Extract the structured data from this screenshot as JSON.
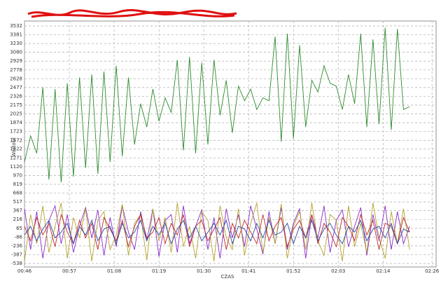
{
  "chart_data": {
    "type": "line",
    "y_label": "Wartość",
    "x_label": "CZAS",
    "x": [
      46,
      47.5,
      49,
      50.5,
      52,
      53.5,
      55,
      56.5,
      58,
      59.5,
      61,
      62.5,
      64,
      65.5,
      67,
      68.5,
      70,
      71.5,
      73,
      74.5,
      76,
      77.5,
      79,
      80.5,
      82,
      83.5,
      85,
      86.5,
      88,
      89.5,
      91,
      92.5,
      94,
      95.5,
      97,
      98.5,
      100,
      101.5,
      103,
      104.5,
      106,
      107.5,
      109,
      110.5,
      112,
      113.5,
      115,
      116.5,
      118,
      119.5,
      121,
      122.5,
      124,
      125.5,
      127,
      128.5,
      130,
      131.5,
      133,
      134.5,
      136,
      137.5,
      139,
      140.5
    ],
    "series": [
      {
        "color": "#2e8b2e",
        "values": [
          1200,
          1650,
          1350,
          2480,
          900,
          2450,
          850,
          2550,
          950,
          2650,
          1100,
          2700,
          1000,
          2750,
          1200,
          2850,
          1300,
          2650,
          1500,
          2200,
          1800,
          2450,
          1900,
          2300,
          2050,
          2950,
          1400,
          3000,
          1350,
          2900,
          1500,
          2950,
          2000,
          2600,
          1700,
          2500,
          2250,
          2450,
          2100,
          2300,
          2250,
          3350,
          1550,
          3400,
          1600,
          3200,
          1800,
          2600,
          2400,
          2850,
          2550,
          2500,
          2100,
          2700,
          2200,
          3400,
          1800,
          3300,
          1850,
          3500,
          1750,
          3480,
          2100,
          2150
        ]
      },
      {
        "color": "#8a2ac8",
        "values": [
          400,
          -300,
          350,
          -450,
          200,
          450,
          -200,
          300,
          -350,
          100,
          420,
          -100,
          380,
          -400,
          250,
          -250,
          450,
          0,
          -300,
          350,
          -150,
          400,
          -420,
          200,
          300,
          -350,
          450,
          -200,
          100,
          380,
          -300,
          250,
          -450,
          400,
          -100,
          300,
          -250,
          450,
          50,
          -380,
          350,
          -200,
          420,
          -300,
          150,
          400,
          -450,
          300,
          -100,
          450,
          -350,
          200,
          380,
          -250,
          100,
          420,
          -400,
          300,
          -150,
          450,
          -300,
          350,
          -200,
          100
        ]
      },
      {
        "color": "#b5a22a",
        "values": [
          -500,
          300,
          -200,
          450,
          -350,
          100,
          500,
          -450,
          250,
          -100,
          400,
          -500,
          200,
          350,
          -300,
          -50,
          480,
          -400,
          150,
          300,
          -480,
          400,
          -150,
          250,
          -350,
          500,
          -250,
          100,
          -450,
          350,
          200,
          -500,
          450,
          -100,
          -300,
          400,
          -400,
          150,
          500,
          -350,
          250,
          -200,
          480,
          -450,
          100,
          350,
          -300,
          500,
          -150,
          -400,
          300,
          200,
          -500,
          450,
          -250,
          150,
          -350,
          500,
          -100,
          -450,
          350,
          -200,
          400,
          -300
        ]
      },
      {
        "color": "#c02828",
        "values": [
          100,
          -150,
          250,
          -50,
          150,
          -250,
          300,
          0,
          -200,
          200,
          -100,
          150,
          -300,
          250,
          50,
          -150,
          200,
          -250,
          100,
          300,
          -100,
          0,
          250,
          -200,
          150,
          -50,
          300,
          -250,
          100,
          200,
          -150,
          50,
          250,
          -300,
          150,
          -100,
          200,
          0,
          -200,
          300,
          -150,
          100,
          250,
          -250,
          50,
          200,
          -100,
          300,
          -200,
          150,
          0,
          -250,
          250,
          100,
          -150,
          300,
          -50,
          200,
          -300,
          150,
          100,
          -200,
          250,
          0
        ]
      },
      {
        "color": "#2a4aa8",
        "values": [
          -50,
          100,
          -150,
          50,
          200,
          -100,
          0,
          150,
          -200,
          100,
          -50,
          200,
          -150,
          50,
          100,
          -200,
          150,
          -100,
          0,
          200,
          -150,
          100,
          -50,
          150,
          -200,
          50,
          200,
          -100,
          100,
          -150,
          0,
          150,
          -50,
          200,
          -200,
          100,
          50,
          -150,
          150,
          -100,
          200,
          -50,
          0,
          150,
          -200,
          100,
          -100,
          200,
          -150,
          50,
          150,
          -50,
          -200,
          100,
          0,
          200,
          -150,
          50,
          100,
          -100,
          150,
          -200,
          50,
          0
        ]
      }
    ],
    "xlim": [
      46,
      147
    ],
    "xticks": [
      {
        "value": 46,
        "label": "00:46"
      },
      {
        "value": 57,
        "label": "00:57"
      },
      {
        "value": 68,
        "label": "01:08"
      },
      {
        "value": 79,
        "label": "01:19"
      },
      {
        "value": 90,
        "label": "01:30"
      },
      {
        "value": 101,
        "label": "01:41"
      },
      {
        "value": 112,
        "label": "01:52"
      },
      {
        "value": 123,
        "label": "02:03"
      },
      {
        "value": 134,
        "label": "02:14"
      },
      {
        "value": 146,
        "label": "02:26"
      }
    ],
    "ylim": [
      -538,
      3532
    ],
    "yticks": [
      3532,
      3381,
      3230,
      3080,
      2929,
      2778,
      2628,
      2477,
      2326,
      2175,
      2025,
      1874,
      1723,
      1572,
      1422,
      1271,
      1120,
      970,
      819,
      668,
      517,
      367,
      216,
      65,
      -86,
      -236,
      -387,
      -538
    ],
    "grid": true
  }
}
